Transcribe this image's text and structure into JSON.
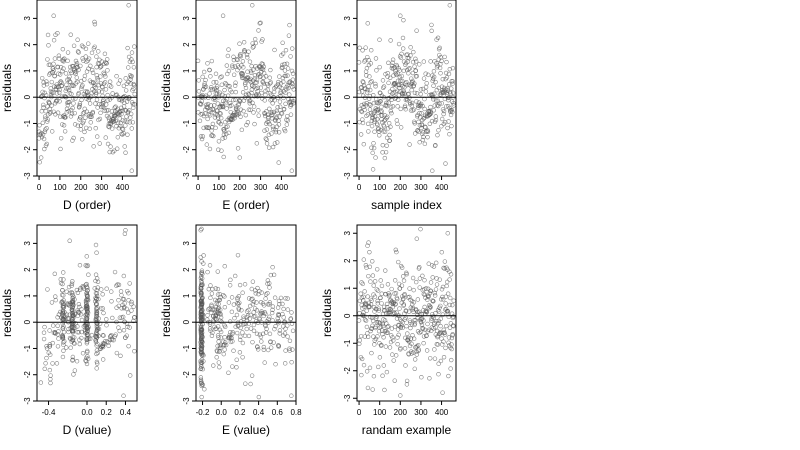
{
  "figure": {
    "background": "#ffffff",
    "point_color": "#555555",
    "line_color": "#000000"
  },
  "chart_data": [
    {
      "type": "scatter",
      "name": "D (order)",
      "xlabel": "D (order)",
      "ylabel": "residuals",
      "xlim": [
        -10,
        470
      ],
      "ylim": [
        -3,
        3.7
      ],
      "xticks": [
        0,
        100,
        200,
        300,
        400
      ],
      "xtick_labels": [
        "0",
        "100",
        "200",
        "300",
        "400"
      ],
      "yticks": [
        -3,
        -2,
        -1,
        0,
        1,
        2,
        3
      ],
      "ytick_labels": [
        "-3",
        "-2",
        "-1",
        "0",
        "1",
        "2",
        "3"
      ],
      "hline": 0,
      "n_points": 460,
      "seed": 11,
      "pattern": "d_order"
    },
    {
      "type": "scatter",
      "name": "E (order)",
      "xlabel": "E (order)",
      "ylabel": "residuals",
      "xlim": [
        -10,
        470
      ],
      "ylim": [
        -3,
        3.7
      ],
      "xticks": [
        0,
        100,
        200,
        300,
        400
      ],
      "xtick_labels": [
        "0",
        "100",
        "200",
        "300",
        "400"
      ],
      "yticks": [
        -3,
        -2,
        -1,
        0,
        1,
        2,
        3
      ],
      "ytick_labels": [
        "-3",
        "-2",
        "-1",
        "0",
        "1",
        "2",
        "3"
      ],
      "hline": 0,
      "n_points": 460,
      "seed": 23,
      "pattern": "e_order"
    },
    {
      "type": "scatter",
      "name": "sample index",
      "xlabel": "sample index",
      "ylabel": "residuals",
      "xlim": [
        -10,
        470
      ],
      "ylim": [
        -3,
        3.7
      ],
      "xticks": [
        0,
        100,
        200,
        300,
        400
      ],
      "xtick_labels": [
        "0",
        "100",
        "200",
        "300",
        "400"
      ],
      "yticks": [
        -3,
        -2,
        -1,
        0,
        1,
        2,
        3
      ],
      "ytick_labels": [
        "-3",
        "-2",
        "-1",
        "0",
        "1",
        "2",
        "3"
      ],
      "hline": 0,
      "n_points": 460,
      "seed": 37,
      "pattern": "sample_index"
    },
    {
      "type": "scatter",
      "name": "D (value)",
      "xlabel": "D (value)",
      "ylabel": "residuals",
      "xlim": [
        -0.52,
        0.52
      ],
      "ylim": [
        -3,
        3.7
      ],
      "xticks": [
        -0.4,
        0.0,
        0.2,
        0.4
      ],
      "xtick_labels": [
        "-0.4",
        "0.0",
        "0.2",
        "0.4"
      ],
      "yticks": [
        -3,
        -2,
        -1,
        0,
        1,
        2,
        3
      ],
      "ytick_labels": [
        "-3",
        "-2",
        "-1",
        "0",
        "1",
        "2",
        "3"
      ],
      "hline": 0,
      "n_points": 460,
      "seed": 41,
      "pattern": "d_value"
    },
    {
      "type": "scatter",
      "name": "E (value)",
      "xlabel": "E (value)",
      "ylabel": "residuals",
      "xlim": [
        -0.27,
        0.8
      ],
      "ylim": [
        -3,
        3.7
      ],
      "xticks": [
        -0.2,
        0.0,
        0.2,
        0.4,
        0.6,
        0.8
      ],
      "xtick_labels": [
        "-0.2",
        "0.0",
        "0.2",
        "0.4",
        "0.6",
        "0.8"
      ],
      "yticks": [
        -3,
        -2,
        -1,
        0,
        1,
        2,
        3
      ],
      "ytick_labels": [
        "-3",
        "-2",
        "-1",
        "0",
        "1",
        "2",
        "3"
      ],
      "hline": 0,
      "n_points": 460,
      "seed": 53,
      "pattern": "e_value"
    },
    {
      "type": "scatter",
      "name": "randam example",
      "xlabel": "randam example",
      "ylabel": "residuals",
      "xlim": [
        -10,
        470
      ],
      "ylim": [
        -3.1,
        3.3
      ],
      "xticks": [
        0,
        100,
        200,
        300,
        400
      ],
      "xtick_labels": [
        "0",
        "100",
        "200",
        "300",
        "400"
      ],
      "yticks": [
        -3,
        -2,
        -1,
        0,
        1,
        2,
        3
      ],
      "ytick_labels": [
        "-3",
        "-2",
        "-1",
        "0",
        "1",
        "2",
        "3"
      ],
      "hline": 0,
      "n_points": 460,
      "seed": 67,
      "pattern": "random"
    }
  ]
}
